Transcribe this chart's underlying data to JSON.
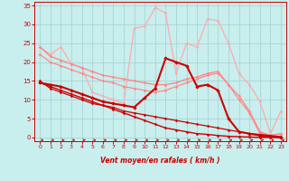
{
  "bg_color": "#c8eeee",
  "grid_color": "#aad4d4",
  "xlabel": "Vent moyen/en rafales ( km/h )",
  "xlabel_color": "#cc0000",
  "tick_color": "#cc0000",
  "xlim": [
    -0.5,
    23.5
  ],
  "ylim": [
    -1,
    36
  ],
  "yticks": [
    0,
    5,
    10,
    15,
    20,
    25,
    30,
    35
  ],
  "xticks": [
    0,
    1,
    2,
    3,
    4,
    5,
    6,
    7,
    8,
    9,
    10,
    11,
    12,
    13,
    14,
    15,
    16,
    17,
    18,
    19,
    20,
    21,
    22,
    23
  ],
  "series": [
    {
      "x": [
        0,
        1,
        2,
        3,
        4,
        5,
        6,
        7,
        8,
        9,
        10,
        11,
        12,
        13,
        14,
        15,
        16,
        17,
        18,
        19,
        20,
        21,
        22,
        23
      ],
      "y": [
        14.5,
        14.0,
        13.5,
        12.5,
        11.5,
        10.5,
        9.5,
        9.0,
        8.5,
        8.0,
        10.5,
        13.0,
        21.0,
        20.0,
        19.0,
        13.5,
        14.0,
        12.5,
        5.0,
        1.5,
        1.0,
        0.5,
        0.2,
        0.0
      ],
      "color": "#cc0000",
      "lw": 1.5,
      "marker": "D",
      "ms": 2.2,
      "zorder": 5
    },
    {
      "x": [
        0,
        1,
        2,
        3,
        4,
        5,
        6,
        7,
        8,
        9,
        10,
        11,
        12,
        13,
        14,
        15,
        16,
        17,
        18,
        19,
        20,
        21,
        22,
        23
      ],
      "y": [
        14.5,
        13.5,
        12.5,
        11.5,
        10.5,
        9.5,
        8.5,
        7.5,
        6.5,
        5.5,
        4.5,
        3.5,
        2.5,
        2.0,
        1.5,
        1.0,
        0.8,
        0.5,
        0.3,
        0.2,
        0.1,
        0.0,
        0.0,
        0.0
      ],
      "color": "#cc0000",
      "lw": 1.0,
      "marker": "D",
      "ms": 1.8,
      "zorder": 4
    },
    {
      "x": [
        0,
        1,
        2,
        3,
        4,
        5,
        6,
        7,
        8,
        9,
        10,
        11,
        12,
        13,
        14,
        15,
        16,
        17,
        18,
        19,
        20,
        21,
        22,
        23
      ],
      "y": [
        15.0,
        13.0,
        12.0,
        11.0,
        10.0,
        9.0,
        8.5,
        8.0,
        7.0,
        6.5,
        6.0,
        5.5,
        5.0,
        4.5,
        4.0,
        3.5,
        3.0,
        2.5,
        2.0,
        1.5,
        1.0,
        0.8,
        0.5,
        0.2
      ],
      "color": "#cc0000",
      "lw": 0.9,
      "marker": "D",
      "ms": 1.8,
      "zorder": 4
    },
    {
      "x": [
        0,
        1,
        2,
        3,
        4,
        5,
        6,
        7,
        8,
        9,
        10,
        11,
        12,
        13,
        14,
        15,
        16,
        17,
        18,
        19,
        20,
        21,
        22,
        23
      ],
      "y": [
        24.0,
        21.5,
        20.5,
        19.5,
        18.5,
        17.5,
        16.5,
        16.0,
        15.5,
        15.0,
        14.5,
        14.0,
        14.0,
        14.5,
        15.5,
        16.0,
        17.0,
        17.5,
        14.0,
        11.0,
        7.0,
        1.5,
        0.5,
        1.0
      ],
      "color": "#ff8888",
      "lw": 1.0,
      "marker": "D",
      "ms": 1.8,
      "zorder": 3
    },
    {
      "x": [
        0,
        1,
        2,
        3,
        4,
        5,
        6,
        7,
        8,
        9,
        10,
        11,
        12,
        13,
        14,
        15,
        16,
        17,
        18,
        19,
        20,
        21,
        22,
        23
      ],
      "y": [
        24.0,
        22.0,
        24.0,
        19.5,
        18.5,
        12.0,
        11.0,
        10.0,
        9.0,
        29.0,
        29.5,
        34.5,
        33.0,
        17.0,
        25.0,
        24.0,
        31.5,
        31.0,
        25.0,
        17.0,
        14.0,
        9.5,
        1.0,
        7.0
      ],
      "color": "#ffaaaa",
      "lw": 0.9,
      "marker": "D",
      "ms": 1.8,
      "zorder": 2
    },
    {
      "x": [
        0,
        1,
        2,
        3,
        4,
        5,
        6,
        7,
        8,
        9,
        10,
        11,
        12,
        13,
        14,
        15,
        16,
        17,
        18,
        19,
        20,
        21,
        22,
        23
      ],
      "y": [
        22.0,
        20.0,
        19.0,
        18.0,
        17.0,
        16.0,
        15.0,
        14.5,
        13.5,
        13.0,
        12.5,
        12.0,
        12.5,
        13.5,
        14.5,
        15.5,
        16.5,
        17.0,
        14.0,
        10.0,
        6.5,
        1.0,
        0.5,
        1.0
      ],
      "color": "#ff8888",
      "lw": 0.9,
      "marker": "D",
      "ms": 1.8,
      "zorder": 3
    }
  ]
}
